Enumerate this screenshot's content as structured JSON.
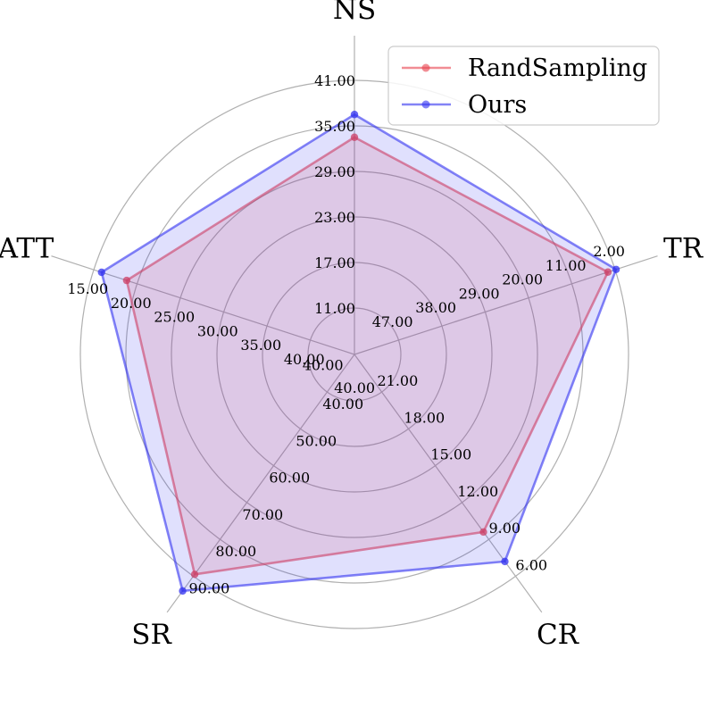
{
  "chart_data": {
    "type": "radar",
    "axes": [
      {
        "name": "NS",
        "ticks": [
          "11.00",
          "17.00",
          "23.00",
          "29.00",
          "35.00",
          "41.00"
        ]
      },
      {
        "name": "TR",
        "ticks": [
          "47.00",
          "38.00",
          "29.00",
          "20.00",
          "11.00",
          "2.00"
        ]
      },
      {
        "name": "CR",
        "ticks": [
          "21.00",
          "18.00",
          "15.00",
          "12.00",
          "9.00",
          "6.00"
        ]
      },
      {
        "name": "SR",
        "ticks": [
          "40.00",
          "50.00",
          "60.00",
          "70.00",
          "80.00",
          "90.00"
        ]
      },
      {
        "name": "ATT",
        "ticks": [
          "40.00",
          "35.00",
          "30.00",
          "25.00",
          "20.00",
          "15.00"
        ]
      }
    ],
    "center_labels": {
      "NS": "",
      "TR": "",
      "CR": "",
      "SR": "40.00",
      "ATT": "40.00"
    },
    "series": [
      {
        "name": "RandSampling",
        "color": "#e8414d",
        "values": [
          33.5,
          3.5,
          9.6,
          89.5,
          18.8
        ]
      },
      {
        "name": "Ours",
        "color": "#3030f0",
        "values": [
          36.5,
          1.8,
          7.2,
          94.0,
          15.9
        ]
      }
    ],
    "grid": true,
    "legend_position": "top-right"
  }
}
